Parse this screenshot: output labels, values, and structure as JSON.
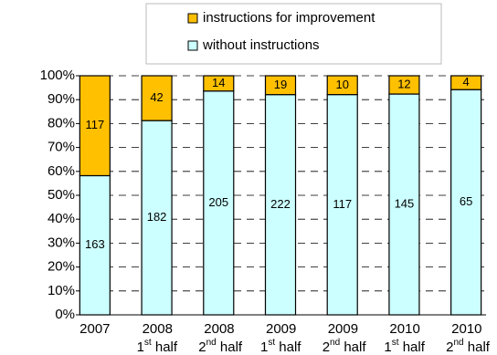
{
  "chart_data": {
    "type": "bar",
    "stacked": "percent",
    "categories": [
      "2007",
      "2008 1st half",
      "2008 2nd half",
      "2009 1st half",
      "2009 2nd half",
      "2010 1st half",
      "2010 2nd half"
    ],
    "series": [
      {
        "name": "without instructions",
        "color": "#ccffff",
        "values": [
          163,
          182,
          205,
          222,
          117,
          145,
          65
        ]
      },
      {
        "name": "instructions for improvement",
        "color": "#ffc000",
        "values": [
          117,
          42,
          14,
          19,
          10,
          12,
          4
        ]
      }
    ],
    "ylim": [
      0,
      100
    ],
    "yticks": [
      {
        "value": 0,
        "label": "0%"
      },
      {
        "value": 10,
        "label": "10%"
      },
      {
        "value": 20,
        "label": "20%"
      },
      {
        "value": 30,
        "label": "30%"
      },
      {
        "value": 40,
        "label": "40%"
      },
      {
        "value": 50,
        "label": "50%"
      },
      {
        "value": 60,
        "label": "60%"
      },
      {
        "value": 70,
        "label": "70%"
      },
      {
        "value": 80,
        "label": "80%"
      },
      {
        "value": 90,
        "label": "90%"
      },
      {
        "value": 100,
        "label": "100%"
      }
    ],
    "grid": true,
    "legend": "top"
  }
}
